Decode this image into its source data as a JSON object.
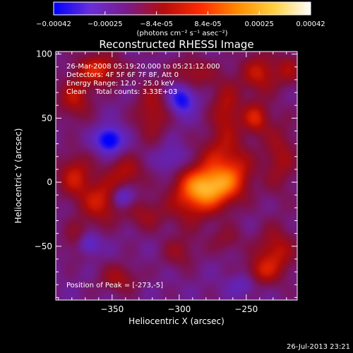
{
  "colorbar": {
    "ticks": [
      "-0.00042",
      "-0.00025",
      "-8.4e-05",
      "8.4e-05",
      "0.00025",
      "0.00042"
    ],
    "units_label": "(photons cm⁻² s⁻¹ asec⁻²)",
    "range": [
      -0.00042,
      0.00042
    ],
    "gradient_stops": [
      "#0000ff",
      "#6a2fd8",
      "#7a1a8a",
      "#b50d0d",
      "#ff2a00",
      "#ff8a00",
      "#ffd040",
      "#ffffff"
    ]
  },
  "plot": {
    "title": "Reconstructed RHESSI Image",
    "annotation_lines": [
      "26-Mar-2008 05:19:20.000 to 05:21:12.000",
      "Detectors: 4F 5F 6F 7F 8F, Att 0",
      "Energy Range: 12.0 - 25.0 keV",
      "Clean    Total counts: 3.33E+03"
    ],
    "peak_label": "Position of Peak = [-273,-5]",
    "timestamp": "26-Jul-2013 23:21"
  },
  "chart_data": {
    "type": "heatmap",
    "title": "Reconstructed RHESSI Image",
    "xlabel": "Heliocentric X (arcsec)",
    "ylabel": "Heliocentric Y (arcsec)",
    "xlim": [
      -392,
      -212
    ],
    "ylim": [
      -92,
      102
    ],
    "xticks": [
      -350,
      -300,
      -250
    ],
    "yticks": [
      -50,
      0,
      50,
      100
    ],
    "xtick_labels": [
      "−350",
      "−300",
      "−250"
    ],
    "ytick_labels": [
      "−50",
      "0",
      "50",
      "100"
    ],
    "peak": [
      -273,
      -5
    ],
    "blobs": [
      {
        "x": -275,
        "y": -3,
        "sx": 14,
        "sy": 12,
        "a": 0.46
      },
      {
        "x": -292,
        "y": -12,
        "sx": 12,
        "sy": 16,
        "a": 0.22
      },
      {
        "x": -258,
        "y": 12,
        "sx": 10,
        "sy": 14,
        "a": 0.2
      },
      {
        "x": -265,
        "y": 55,
        "sx": 8,
        "sy": 18,
        "a": 0.22
      },
      {
        "x": -275,
        "y": 25,
        "sx": 8,
        "sy": 10,
        "a": 0.12
      },
      {
        "x": -243,
        "y": 50,
        "sx": 7,
        "sy": 9,
        "a": 0.26
      },
      {
        "x": -240,
        "y": 85,
        "sx": 10,
        "sy": 11,
        "a": 0.24
      },
      {
        "x": -225,
        "y": 20,
        "sx": 9,
        "sy": 20,
        "a": 0.18
      },
      {
        "x": -228,
        "y": -55,
        "sx": 10,
        "sy": 14,
        "a": 0.24
      },
      {
        "x": -240,
        "y": -70,
        "sx": 8,
        "sy": 8,
        "a": 0.18
      },
      {
        "x": -360,
        "y": 88,
        "sx": 12,
        "sy": 9,
        "a": 0.28
      },
      {
        "x": -378,
        "y": 65,
        "sx": 9,
        "sy": 11,
        "a": 0.22
      },
      {
        "x": -378,
        "y": 5,
        "sx": 9,
        "sy": 12,
        "a": 0.24
      },
      {
        "x": -358,
        "y": -15,
        "sx": 11,
        "sy": 12,
        "a": 0.26
      },
      {
        "x": -340,
        "y": 8,
        "sx": 10,
        "sy": 9,
        "a": 0.2
      },
      {
        "x": -325,
        "y": -25,
        "sx": 10,
        "sy": 9,
        "a": 0.16
      },
      {
        "x": -320,
        "y": 55,
        "sx": 9,
        "sy": 16,
        "a": 0.2
      },
      {
        "x": -290,
        "y": 85,
        "sx": 11,
        "sy": 9,
        "a": 0.18
      },
      {
        "x": -375,
        "y": -45,
        "sx": 8,
        "sy": 10,
        "a": 0.16
      },
      {
        "x": -345,
        "y": -75,
        "sx": 10,
        "sy": 8,
        "a": 0.18
      },
      {
        "x": -300,
        "y": -55,
        "sx": 9,
        "sy": 9,
        "a": 0.14
      },
      {
        "x": -265,
        "y": -45,
        "sx": 9,
        "sy": 8,
        "a": 0.12
      },
      {
        "x": -218,
        "y": 88,
        "sx": 7,
        "sy": 9,
        "a": 0.16
      },
      {
        "x": -352,
        "y": 33,
        "sx": 7,
        "sy": 7,
        "a": -0.36
      },
      {
        "x": -298,
        "y": 65,
        "sx": 7,
        "sy": 8,
        "a": -0.3
      },
      {
        "x": -368,
        "y": -48,
        "sx": 6,
        "sy": 6,
        "a": -0.26
      },
      {
        "x": -342,
        "y": -12,
        "sx": 6,
        "sy": 6,
        "a": -0.24
      },
      {
        "x": -306,
        "y": 18,
        "sx": 8,
        "sy": 8,
        "a": -0.14
      },
      {
        "x": -252,
        "y": -80,
        "sx": 8,
        "sy": 6,
        "a": -0.12
      }
    ]
  }
}
